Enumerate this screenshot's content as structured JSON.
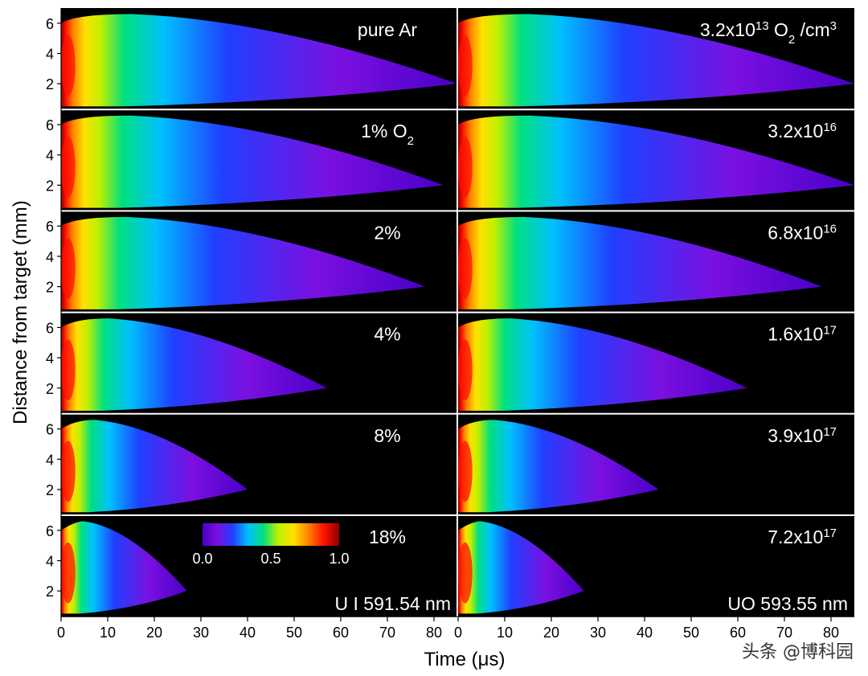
{
  "chart_data": {
    "type": "heatmap",
    "xlabel_prefix": "Time (",
    "xlabel_unit": "μ",
    "xlabel_suffix": "s)",
    "ylabel": "Distance from target (mm)",
    "xlim": [
      0,
      85
    ],
    "ylim": [
      0.3,
      7
    ],
    "x_ticks": [
      0,
      10,
      20,
      30,
      40,
      50,
      60,
      70,
      80
    ],
    "y_ticks": [
      2,
      4,
      6
    ],
    "colorbar": {
      "min": 0.0,
      "max": 1.0,
      "tick_labels": [
        "0.0",
        "0.5",
        "1.0"
      ]
    },
    "columns": [
      {
        "line_label": "U I 591.54 nm",
        "panels": [
          {
            "label": "pure Ar",
            "extent_us": 85
          },
          {
            "label": "1% O",
            "label_sub": "2",
            "extent_us": 82
          },
          {
            "label": "2%",
            "extent_us": 78
          },
          {
            "label": "4%",
            "extent_us": 57
          },
          {
            "label": "8%",
            "extent_us": 40
          },
          {
            "label": "18%",
            "extent_us": 27
          }
        ]
      },
      {
        "line_label": "UO 593.55 nm",
        "panels": [
          {
            "label": "3.2x10",
            "label_sup": "13",
            "label_mid": " O",
            "label_sub": "2",
            "label_tail": " /cm",
            "label_sup2": "3",
            "extent_us": 85
          },
          {
            "label": "3.2x10",
            "label_sup": "16",
            "extent_us": 85
          },
          {
            "label": "6.8x10",
            "label_sup": "16",
            "extent_us": 78
          },
          {
            "label": "1.6x10",
            "label_sup": "17",
            "extent_us": 62
          },
          {
            "label": "3.9x10",
            "label_sup": "17",
            "extent_us": 43
          },
          {
            "label": "7.2x10",
            "label_sup": "17",
            "extent_us": 27
          }
        ]
      }
    ]
  },
  "colors": {
    "background": "#000000",
    "colormap": [
      "#4a00c8",
      "#7a10e0",
      "#2040ff",
      "#00c0ff",
      "#00e080",
      "#c0f000",
      "#ffe000",
      "#ff8000",
      "#ff1000",
      "#900000"
    ]
  },
  "watermark": "头条 @博科园"
}
